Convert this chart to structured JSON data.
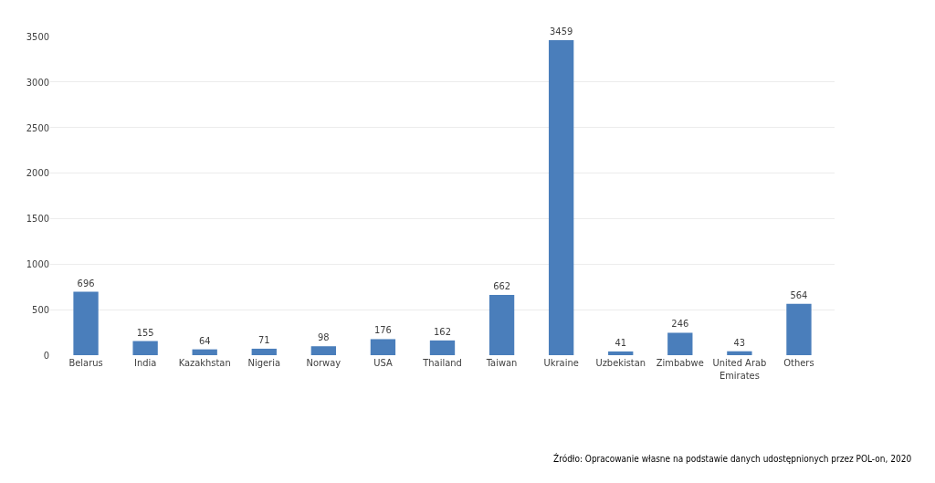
{
  "chart_data": {
    "type": "bar",
    "categories": [
      "Belarus",
      "India",
      "Kazakhstan",
      "Nigeria",
      "Norway",
      "USA",
      "Thailand",
      "Taiwan",
      "Ukraine",
      "Uzbekistan",
      "Zimbabwe",
      "United Arab Emirates",
      "Others"
    ],
    "values": [
      696,
      155,
      64,
      71,
      98,
      176,
      162,
      662,
      3459,
      41,
      246,
      43,
      564
    ],
    "color": "#4a7ebb",
    "data_labels": true,
    "ylim": [
      0,
      3500
    ],
    "yticks": [
      0,
      500,
      1000,
      1500,
      2000,
      2500,
      3000,
      3500
    ],
    "grid": "y",
    "legend": false,
    "annotations": [
      "Źródło: Opracowanie własne na podstawie danych udostępnionych przez POL-on, 2020"
    ]
  }
}
